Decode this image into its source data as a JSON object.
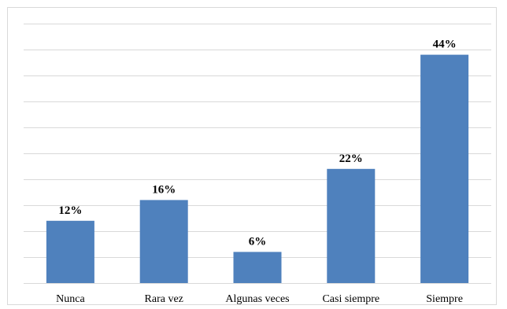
{
  "chart_data": {
    "type": "bar",
    "categories": [
      "Nunca",
      "Rara vez",
      "Algunas veces",
      "Casi siempre",
      "Siempre"
    ],
    "values": [
      12,
      16,
      6,
      22,
      44
    ],
    "data_labels": [
      "12%",
      "16%",
      "6%",
      "22%",
      "44%"
    ],
    "title": "",
    "xlabel": "",
    "ylabel": "",
    "ylim": [
      0,
      50
    ],
    "grid": true,
    "legend": "none",
    "bar_color": "#4f81bd"
  }
}
